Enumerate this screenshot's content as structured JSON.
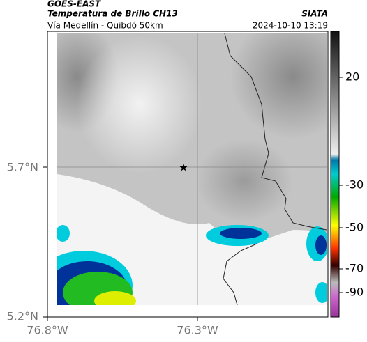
{
  "header": {
    "title": "GOES-EAST",
    "subtitle": "Temperatura de Brillo CH13",
    "source": "SIATA",
    "route": "Vía Medellín - Quibdó 50km",
    "timestamp": "2024-10-10 13:19"
  },
  "map": {
    "lat_labels": [
      "5.7°N",
      "5.2°N"
    ],
    "lon_labels": [
      "76.8°W",
      "76.3°W"
    ]
  },
  "colorbar": {
    "ticks": [
      20,
      -30,
      -50,
      -70,
      -90
    ]
  }
}
